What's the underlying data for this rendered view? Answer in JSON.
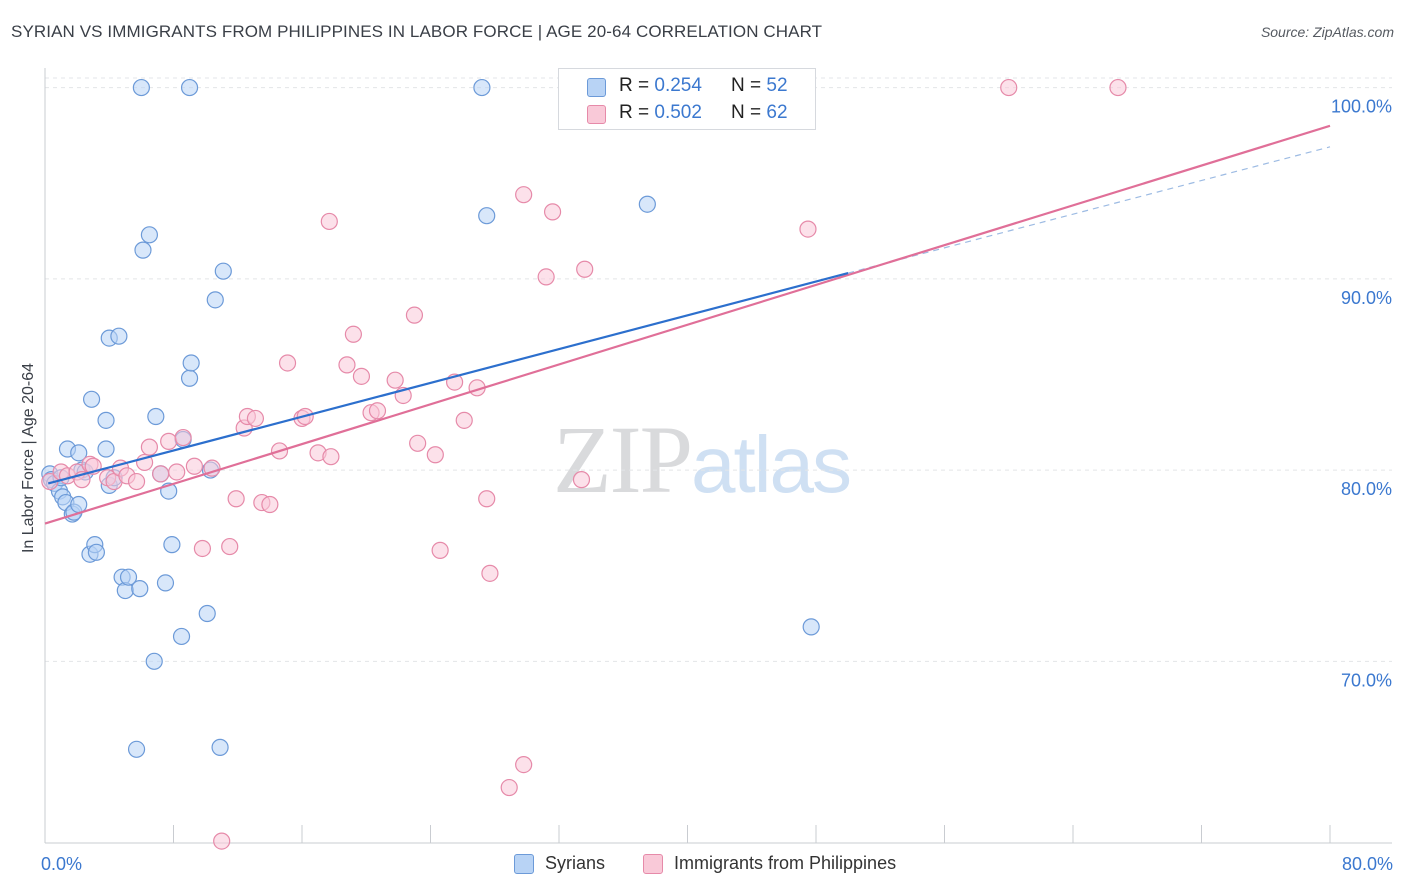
{
  "title": "SYRIAN VS IMMIGRANTS FROM PHILIPPINES IN LABOR FORCE | AGE 20-64 CORRELATION CHART",
  "source": "Source: ZipAtlas.com",
  "watermark": {
    "zip": "ZIP",
    "atlas": "atlas"
  },
  "legend_top": [
    {
      "r_label": "R = ",
      "r_value": "0.254",
      "n_label": "N = ",
      "n_value": "52",
      "color": "#6c9ad8"
    },
    {
      "r_label": "R = ",
      "r_value": "0.502",
      "n_label": "N = ",
      "n_value": "62",
      "color": "#e68aa9"
    }
  ],
  "legend_bottom": [
    {
      "label": "Syrians",
      "color": "#6c9ad8"
    },
    {
      "label": "Immigrants from Philippines",
      "color": "#e68aa9"
    }
  ],
  "chart_data": {
    "type": "scatter",
    "title": "SYRIAN VS IMMIGRANTS FROM PHILIPPINES IN LABOR FORCE | AGE 20-64 CORRELATION CHART",
    "xlabel": "",
    "ylabel": "In Labor Force | Age 20-64",
    "xlim": [
      0,
      80
    ],
    "ylim": [
      60.5,
      100.5
    ],
    "x_tick_labels": [
      {
        "value": 0,
        "label": "0.0%"
      },
      {
        "value": 80,
        "label": "80.0%"
      }
    ],
    "y_tick_labels": [
      {
        "value": 70,
        "label": "70.0%"
      },
      {
        "value": 80,
        "label": "80.0%"
      },
      {
        "value": 90,
        "label": "90.0%"
      },
      {
        "value": 100,
        "label": "100.0%"
      }
    ],
    "grid": true,
    "legend_position": "top-center",
    "series": [
      {
        "name": "Syrians",
        "color": "#6c9ad8",
        "fill": "#b8d3f5",
        "r": 0.254,
        "n": 52,
        "trend": {
          "x": [
            0.2,
            50.0
          ],
          "y": [
            79.3,
            90.3
          ]
        },
        "trend_extension": {
          "x": [
            50.0,
            80.0
          ],
          "y": [
            90.3,
            96.9
          ]
        },
        "points": [
          [
            0.3,
            79.8
          ],
          [
            0.4,
            79.5
          ],
          [
            0.6,
            79.3
          ],
          [
            0.9,
            78.9
          ],
          [
            1.1,
            78.6
          ],
          [
            1.3,
            78.3
          ],
          [
            1.4,
            81.1
          ],
          [
            1.7,
            77.7
          ],
          [
            1.8,
            77.8
          ],
          [
            2.1,
            80.9
          ],
          [
            2.3,
            80.0
          ],
          [
            2.1,
            78.2
          ],
          [
            2.8,
            75.6
          ],
          [
            3.1,
            76.1
          ],
          [
            2.9,
            83.7
          ],
          [
            3.2,
            75.7
          ],
          [
            3.8,
            81.1
          ],
          [
            4.0,
            79.2
          ],
          [
            4.3,
            79.6
          ],
          [
            3.8,
            82.6
          ],
          [
            4.0,
            86.9
          ],
          [
            4.8,
            74.4
          ],
          [
            5.0,
            73.7
          ],
          [
            5.2,
            74.4
          ],
          [
            4.6,
            87.0
          ],
          [
            5.9,
            73.8
          ],
          [
            5.7,
            65.4
          ],
          [
            6.1,
            91.5
          ],
          [
            6.5,
            92.3
          ],
          [
            6.0,
            100.0
          ],
          [
            6.8,
            70.0
          ],
          [
            6.9,
            82.8
          ],
          [
            7.2,
            79.8
          ],
          [
            7.5,
            74.1
          ],
          [
            7.7,
            78.9
          ],
          [
            7.9,
            76.1
          ],
          [
            8.5,
            71.3
          ],
          [
            8.6,
            81.6
          ],
          [
            9.0,
            84.8
          ],
          [
            9.1,
            85.6
          ],
          [
            9.0,
            100.0
          ],
          [
            10.1,
            72.5
          ],
          [
            10.3,
            80.0
          ],
          [
            10.6,
            88.9
          ],
          [
            10.9,
            65.5
          ],
          [
            11.1,
            90.4
          ],
          [
            27.2,
            100.0
          ],
          [
            27.5,
            93.3
          ],
          [
            37.5,
            93.9
          ],
          [
            47.7,
            71.8
          ],
          [
            1.0,
            79.6
          ],
          [
            2.5,
            79.9
          ]
        ]
      },
      {
        "name": "Immigrants from Philippines",
        "color": "#e68aa9",
        "fill": "#f9c9d8",
        "r": 0.502,
        "n": 62,
        "trend": {
          "x": [
            0.0,
            80.0
          ],
          "y": [
            77.2,
            98.0
          ]
        },
        "points": [
          [
            0.3,
            79.4
          ],
          [
            1.0,
            79.9
          ],
          [
            1.4,
            79.7
          ],
          [
            2.0,
            79.9
          ],
          [
            2.3,
            79.5
          ],
          [
            2.8,
            80.3
          ],
          [
            3.0,
            80.2
          ],
          [
            3.9,
            79.6
          ],
          [
            4.3,
            79.4
          ],
          [
            4.7,
            80.1
          ],
          [
            5.1,
            79.7
          ],
          [
            5.7,
            79.4
          ],
          [
            6.2,
            80.4
          ],
          [
            6.5,
            81.2
          ],
          [
            7.2,
            79.8
          ],
          [
            7.7,
            81.5
          ],
          [
            8.2,
            79.9
          ],
          [
            8.6,
            81.7
          ],
          [
            9.3,
            80.2
          ],
          [
            9.8,
            75.9
          ],
          [
            10.4,
            80.1
          ],
          [
            11.0,
            60.6
          ],
          [
            11.5,
            76.0
          ],
          [
            11.9,
            78.5
          ],
          [
            12.4,
            82.2
          ],
          [
            12.6,
            82.8
          ],
          [
            13.1,
            82.7
          ],
          [
            13.5,
            78.3
          ],
          [
            14.0,
            78.2
          ],
          [
            14.6,
            81.0
          ],
          [
            15.1,
            85.6
          ],
          [
            16.0,
            82.7
          ],
          [
            16.2,
            82.8
          ],
          [
            17.0,
            80.9
          ],
          [
            17.8,
            80.7
          ],
          [
            17.7,
            93.0
          ],
          [
            18.8,
            85.5
          ],
          [
            19.2,
            87.1
          ],
          [
            19.7,
            84.9
          ],
          [
            20.3,
            83.0
          ],
          [
            20.7,
            83.1
          ],
          [
            21.8,
            84.7
          ],
          [
            22.3,
            83.9
          ],
          [
            23.0,
            88.1
          ],
          [
            23.2,
            81.4
          ],
          [
            24.3,
            80.8
          ],
          [
            24.6,
            75.8
          ],
          [
            25.5,
            84.6
          ],
          [
            26.1,
            82.6
          ],
          [
            26.9,
            84.3
          ],
          [
            27.5,
            78.5
          ],
          [
            27.7,
            74.6
          ],
          [
            28.9,
            63.4
          ],
          [
            29.8,
            64.6
          ],
          [
            29.8,
            94.4
          ],
          [
            31.2,
            90.1
          ],
          [
            31.6,
            93.5
          ],
          [
            33.4,
            79.5
          ],
          [
            33.6,
            90.5
          ],
          [
            47.5,
            92.6
          ],
          [
            60.0,
            100.0
          ],
          [
            66.8,
            100.0
          ]
        ]
      }
    ]
  }
}
